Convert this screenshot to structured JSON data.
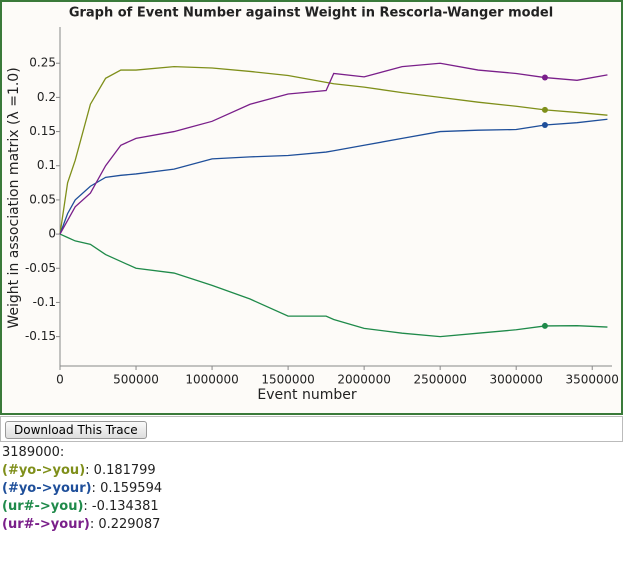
{
  "chart_data": {
    "type": "line",
    "title": "Graph of Event Number against Weight in Rescorla-Wanger model",
    "x_label": "Event number",
    "y_label": "Weight in association matrix (λ =1.0)",
    "x": [
      0,
      50000,
      100000,
      200000,
      300000,
      400000,
      500000,
      750000,
      1000000,
      1250000,
      1500000,
      1750000,
      1800000,
      2000000,
      2250000,
      2500000,
      2750000,
      3000000,
      3189000,
      3400000,
      3600000
    ],
    "xlim": [
      0,
      3630000
    ],
    "xticks": [
      0,
      500000,
      1000000,
      1500000,
      2000000,
      2500000,
      3000000,
      3500000
    ],
    "ylim": [
      -0.193,
      0.303
    ],
    "yticks": [
      0.25,
      0.2,
      0.15,
      0.1,
      0.05,
      0,
      -0.05,
      -0.1,
      -0.15
    ],
    "cursor_x": 3189000,
    "series": [
      {
        "name": "(#yo->you)",
        "color": "#7f8f1a",
        "cursor_value": 0.181799,
        "values": [
          0,
          0.075,
          0.108,
          0.19,
          0.228,
          0.24,
          0.24,
          0.245,
          0.243,
          0.238,
          0.232,
          0.222,
          0.22,
          0.215,
          0.207,
          0.2,
          0.193,
          0.187,
          0.1818,
          0.178,
          0.174
        ]
      },
      {
        "name": "(#yo->your)",
        "color": "#1f4f9a",
        "cursor_value": 0.159594,
        "values": [
          0,
          0.03,
          0.05,
          0.07,
          0.083,
          0.086,
          0.088,
          0.095,
          0.11,
          0.113,
          0.115,
          0.12,
          0.122,
          0.13,
          0.14,
          0.15,
          0.152,
          0.153,
          0.1596,
          0.163,
          0.168
        ]
      },
      {
        "name": "(ur#->you)",
        "color": "#1f8a4a",
        "cursor_value": -0.134381,
        "values": [
          0,
          -0.005,
          -0.01,
          -0.015,
          -0.03,
          -0.04,
          -0.05,
          -0.057,
          -0.075,
          -0.095,
          -0.12,
          -0.12,
          -0.125,
          -0.138,
          -0.145,
          -0.15,
          -0.145,
          -0.14,
          -0.1344,
          -0.134,
          -0.136
        ]
      },
      {
        "name": "(ur#->your)",
        "color": "#7a1f8a",
        "cursor_value": 0.229087,
        "values": [
          0,
          0.02,
          0.04,
          0.06,
          0.1,
          0.13,
          0.14,
          0.15,
          0.165,
          0.19,
          0.205,
          0.21,
          0.235,
          0.23,
          0.245,
          0.25,
          0.24,
          0.235,
          0.229,
          0.225,
          0.233
        ]
      }
    ]
  },
  "button": "Download This Trace"
}
